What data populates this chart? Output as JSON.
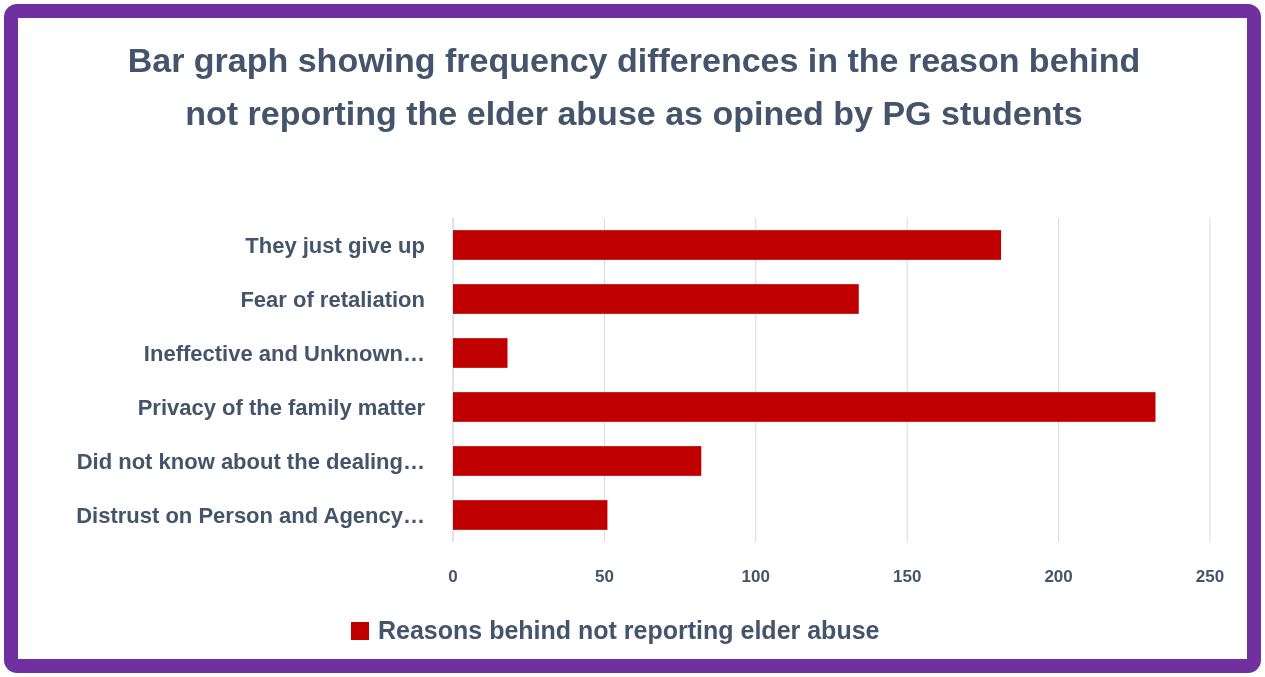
{
  "chart_data": {
    "type": "bar",
    "orientation": "horizontal",
    "title": "Bar graph showing frequency differences in the reason behind not reporting the elder abuse as opined by PG students",
    "categories": [
      "They just give up",
      "Fear of retaliation",
      "Ineffective and Unknown…",
      "Privacy of the family matter",
      "Did not know about the dealing…",
      "Distrust on Person and Agency…"
    ],
    "series": [
      {
        "name": "Reasons behind not reporting elder abuse",
        "color": "#c00000",
        "values": [
          181,
          134,
          18,
          232,
          82,
          51
        ]
      }
    ],
    "xlim": [
      0,
      250
    ],
    "xticks": [
      0,
      50,
      100,
      150,
      200,
      250
    ],
    "grid": "x",
    "legend": "bottom"
  }
}
